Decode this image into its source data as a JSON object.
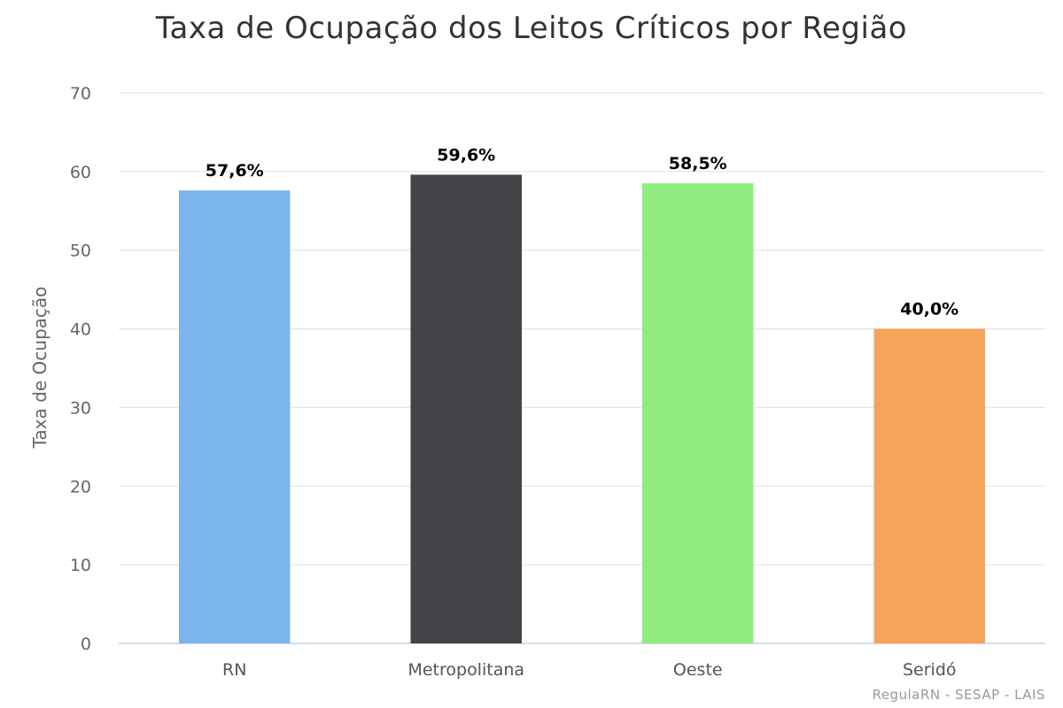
{
  "chart_data": {
    "type": "bar",
    "title": "Taxa de Ocupação dos Leitos Críticos por Região",
    "xlabel": "",
    "ylabel": "Taxa de Ocupação",
    "categories": [
      "RN",
      "Metropolitana",
      "Oeste",
      "Seridó"
    ],
    "values": [
      57.6,
      59.6,
      58.5,
      40.0
    ],
    "data_labels": [
      "57,6%",
      "59,6%",
      "58,5%",
      "40,0%"
    ],
    "colors": [
      "#7cb5ec",
      "#434348",
      "#90ed7d",
      "#f7a35c"
    ],
    "ylim": [
      0,
      70
    ],
    "yticks": [
      0,
      10,
      20,
      30,
      40,
      50,
      60,
      70
    ],
    "grid": true,
    "legend": "none"
  },
  "credits": "RegulaRN - SESAP - LAIS"
}
